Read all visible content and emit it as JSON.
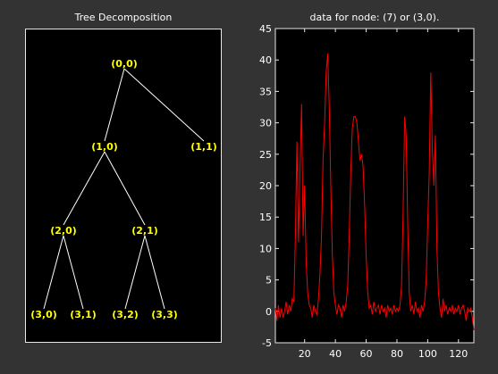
{
  "left_panel": {
    "title": "Tree Decomposition",
    "nodes": [
      {
        "id": "n00",
        "label": "(0,0)"
      },
      {
        "id": "n10",
        "label": "(1,0)"
      },
      {
        "id": "n11",
        "label": "(1,1)"
      },
      {
        "id": "n20",
        "label": "(2,0)"
      },
      {
        "id": "n21",
        "label": "(2,1)"
      },
      {
        "id": "n30",
        "label": "(3,0)"
      },
      {
        "id": "n31",
        "label": "(3,1)"
      },
      {
        "id": "n32",
        "label": "(3,2)"
      },
      {
        "id": "n33",
        "label": "(3,3)"
      }
    ],
    "edges": [
      [
        "n00",
        "n10"
      ],
      [
        "n00",
        "n11"
      ],
      [
        "n10",
        "n20"
      ],
      [
        "n10",
        "n21"
      ],
      [
        "n20",
        "n30"
      ],
      [
        "n20",
        "n31"
      ],
      [
        "n21",
        "n32"
      ],
      [
        "n21",
        "n33"
      ]
    ],
    "colors": {
      "background": "#000000",
      "edge": "#ffffff",
      "label": "#ffff00"
    }
  },
  "right_panel": {
    "title": "data for node: (7) or (3,0).",
    "chart_data": {
      "type": "line",
      "xlim": [
        1,
        130
      ],
      "ylim": [
        -5,
        45
      ],
      "xticks": [
        20,
        40,
        60,
        80,
        100,
        120
      ],
      "yticks": [
        -5,
        0,
        5,
        10,
        15,
        20,
        25,
        30,
        35,
        40,
        45
      ],
      "grid": false,
      "line_color": "#ff0000",
      "series": [
        {
          "x": [
            1,
            2,
            3,
            4,
            5,
            6,
            7,
            8,
            9,
            10,
            11,
            12,
            13,
            14,
            15,
            16,
            17,
            18,
            19,
            20,
            21,
            22,
            23,
            24,
            25,
            26,
            27,
            28,
            29,
            30,
            31,
            32,
            33,
            34,
            35,
            36,
            37,
            38,
            39,
            40,
            41,
            42,
            43,
            44,
            45,
            46,
            47,
            48,
            49,
            50,
            51,
            52,
            53,
            54,
            55,
            56,
            57,
            58,
            59,
            60,
            61,
            62,
            63,
            64,
            65,
            66,
            67,
            68,
            69,
            70,
            71,
            72,
            73,
            74,
            75,
            76,
            77,
            78,
            79,
            80,
            81,
            82,
            83,
            84,
            85,
            86,
            87,
            88,
            89,
            90,
            91,
            92,
            93,
            94,
            95,
            96,
            97,
            98,
            99,
            100,
            101,
            102,
            103,
            104,
            105,
            106,
            107,
            108,
            109,
            110,
            111,
            112,
            113,
            114,
            115,
            116,
            117,
            118,
            119,
            120,
            121,
            122,
            123,
            124,
            125,
            126,
            127,
            128,
            129,
            130
          ],
          "y": [
            0.5,
            -1.5,
            1,
            -1,
            0.5,
            -1,
            0,
            1.5,
            -0.5,
            1,
            0,
            2,
            1.5,
            12,
            27,
            11,
            22,
            33,
            12,
            20,
            8,
            3,
            1,
            0.5,
            -1,
            1,
            0,
            -0.5,
            2,
            6,
            12,
            24,
            30,
            38,
            41,
            33,
            20,
            9,
            3,
            1,
            -0.5,
            1,
            0.5,
            -1,
            1,
            0,
            1.5,
            4,
            12,
            22,
            29,
            31,
            31,
            30,
            27,
            24,
            25,
            23,
            17,
            9,
            3,
            0.5,
            1,
            -0.5,
            1.5,
            0,
            0.5,
            1,
            -0.5,
            1,
            0,
            0.5,
            -1,
            1,
            0,
            0.5,
            -0.5,
            1,
            0,
            0.5,
            0,
            1,
            4,
            15,
            31,
            28,
            14,
            3,
            0,
            1,
            -0.5,
            1.5,
            0,
            0.5,
            -1,
            1,
            0,
            1.5,
            5,
            14,
            22,
            38,
            26,
            20,
            28,
            10,
            3,
            0.5,
            -1,
            2,
            0,
            1,
            -0.5,
            0.5,
            0,
            1,
            -0.5,
            0.5,
            0,
            1,
            -0.5,
            0.5,
            1,
            0,
            -1.5,
            0.5,
            0,
            0.5,
            -1,
            -3
          ]
        }
      ]
    }
  }
}
